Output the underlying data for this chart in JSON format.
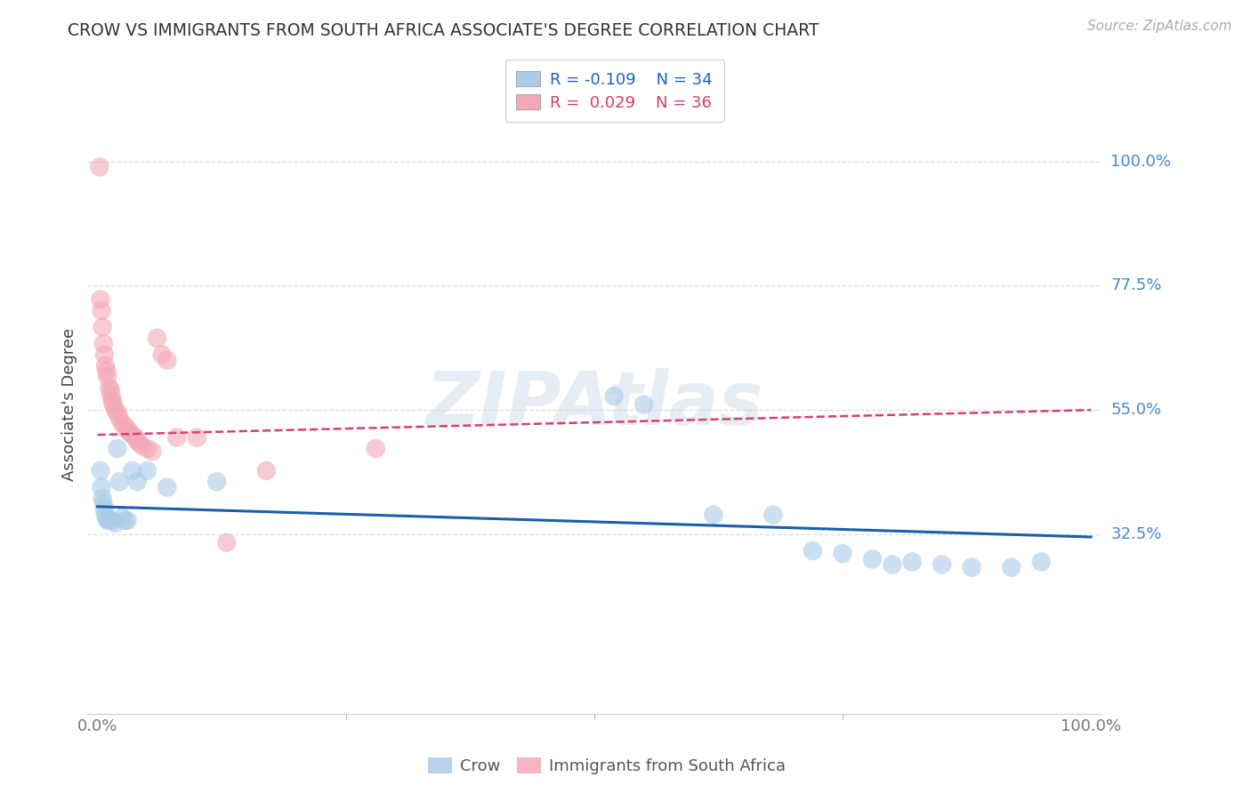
{
  "title": "CROW VS IMMIGRANTS FROM SOUTH AFRICA ASSOCIATE'S DEGREE CORRELATION CHART",
  "source": "Source: ZipAtlas.com",
  "ylabel": "Associate's Degree",
  "ytick_labels": [
    "100.0%",
    "77.5%",
    "55.0%",
    "32.5%"
  ],
  "ytick_values": [
    1.0,
    0.775,
    0.55,
    0.325
  ],
  "xtick_labels": [
    "0.0%",
    "100.0%"
  ],
  "xtick_positions": [
    0.0,
    1.0
  ],
  "legend_line1_r": "R = -0.109",
  "legend_line1_n": "N = 34",
  "legend_line2_r": "R =  0.029",
  "legend_line2_n": "N = 36",
  "legend_label1": "Crow",
  "legend_label2": "Immigrants from South Africa",
  "crow_color": "#aacce8",
  "sa_color": "#f4a8b8",
  "crow_line_color": "#1a5fa8",
  "sa_line_color": "#d94070",
  "background_color": "#ffffff",
  "grid_color": "#dddddd",
  "crow_x": [
    0.003,
    0.004,
    0.005,
    0.006,
    0.007,
    0.008,
    0.009,
    0.01,
    0.012,
    0.015,
    0.018,
    0.02,
    0.022,
    0.025,
    0.028,
    0.03,
    0.035,
    0.04,
    0.05,
    0.07,
    0.12,
    0.52,
    0.55,
    0.62,
    0.68,
    0.72,
    0.75,
    0.78,
    0.8,
    0.82,
    0.85,
    0.88,
    0.92,
    0.95
  ],
  "crow_y": [
    0.44,
    0.41,
    0.39,
    0.38,
    0.37,
    0.36,
    0.355,
    0.35,
    0.35,
    0.35,
    0.345,
    0.48,
    0.42,
    0.355,
    0.35,
    0.35,
    0.44,
    0.42,
    0.44,
    0.41,
    0.42,
    0.575,
    0.56,
    0.36,
    0.36,
    0.295,
    0.29,
    0.28,
    0.27,
    0.275,
    0.27,
    0.265,
    0.265,
    0.275
  ],
  "sa_x": [
    0.002,
    0.003,
    0.004,
    0.005,
    0.006,
    0.007,
    0.008,
    0.009,
    0.01,
    0.012,
    0.013,
    0.014,
    0.015,
    0.016,
    0.018,
    0.02,
    0.022,
    0.025,
    0.028,
    0.03,
    0.032,
    0.035,
    0.038,
    0.04,
    0.042,
    0.045,
    0.05,
    0.055,
    0.06,
    0.065,
    0.07,
    0.08,
    0.1,
    0.13,
    0.17,
    0.28
  ],
  "sa_y": [
    0.99,
    0.75,
    0.73,
    0.7,
    0.67,
    0.65,
    0.63,
    0.62,
    0.61,
    0.59,
    0.585,
    0.575,
    0.565,
    0.56,
    0.55,
    0.545,
    0.535,
    0.525,
    0.52,
    0.515,
    0.51,
    0.505,
    0.5,
    0.495,
    0.49,
    0.485,
    0.48,
    0.475,
    0.68,
    0.65,
    0.64,
    0.5,
    0.5,
    0.31,
    0.44,
    0.48
  ],
  "xlim": [
    -0.01,
    1.01
  ],
  "ylim": [
    0.0,
    1.12
  ]
}
